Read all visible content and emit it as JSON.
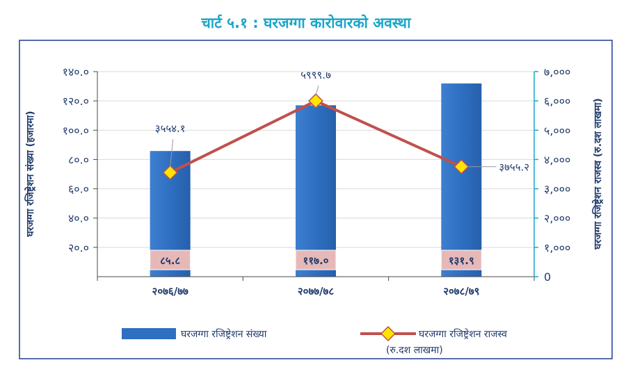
{
  "chart_data": {
    "type": "bar+line",
    "title": "चार्ट ५.१ : घरजग्गा कारोवारको अवस्था",
    "categories": [
      "२०७६/७७",
      "२०७७/७८",
      "२०७८/७९"
    ],
    "series": [
      {
        "name": "घरजग्गा रजिष्ट्रेशन संख्या",
        "type": "bar",
        "axis": "left",
        "values": [
          85.8,
          117.0,
          131.9
        ],
        "labels": [
          "८५.८",
          "११७.०",
          "१३१.९"
        ],
        "color": "#2f6fc1"
      },
      {
        "name": "घरजग्गा रजिष्ट्रेशन राजस्व",
        "name_note": "(रु.दश लाखमा)",
        "type": "line",
        "axis": "right",
        "values": [
          3554.1,
          5999.7,
          3755.2
        ],
        "labels": [
          "३५५४.१",
          "५९९९.७",
          "३७५५.२"
        ],
        "color": "#c0504d",
        "marker_color": "#ffe600"
      }
    ],
    "y_left": {
      "label": "घरजग्गा रजिष्ट्रेशन संख्या (हजारमा)",
      "range": [
        0,
        140
      ],
      "ticks": [
        20,
        40,
        60,
        80,
        100,
        120,
        140
      ],
      "tick_labels": [
        "२०.०",
        "४०.०",
        "६०.०",
        "८०.०",
        "१००.०",
        "१२०.०",
        "१४०.०"
      ]
    },
    "y_right": {
      "label": "घरजग्गा रजिष्ट्रेशन राजस्व (रु.दश लाखमा)",
      "range": [
        0,
        7000
      ],
      "ticks": [
        0,
        1000,
        2000,
        3000,
        4000,
        5000,
        6000,
        7000
      ],
      "tick_labels": [
        "0",
        "१,०००",
        "२,०००",
        "३,०००",
        "४,०००",
        "५,०००",
        "६,०००",
        "७,०००"
      ]
    },
    "grid": true,
    "legend_position": "bottom"
  }
}
